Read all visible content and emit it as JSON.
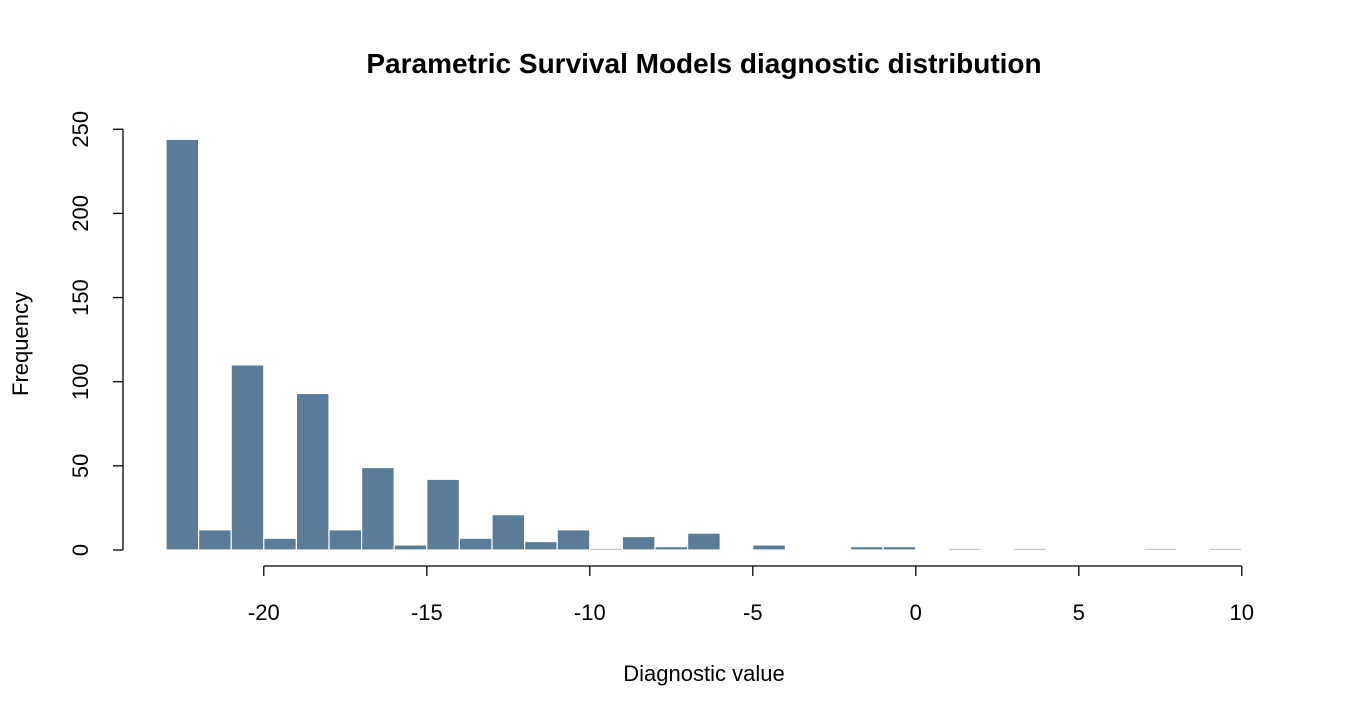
{
  "chart_data": {
    "type": "bar",
    "title": "Parametric Survival Models diagnostic distribution",
    "xlabel": "Diagnostic value",
    "ylabel": "Frequency",
    "xlim": [
      -23,
      10
    ],
    "ylim": [
      0,
      250
    ],
    "xticks": [
      -20,
      -15,
      -10,
      -5,
      0,
      5,
      10
    ],
    "yticks": [
      0,
      50,
      100,
      150,
      200,
      250
    ],
    "bin_width": 1,
    "bins": [
      {
        "x0": -23,
        "x1": -22,
        "count": 244
      },
      {
        "x0": -22,
        "x1": -21,
        "count": 12
      },
      {
        "x0": -21,
        "x1": -20,
        "count": 110
      },
      {
        "x0": -20,
        "x1": -19,
        "count": 7
      },
      {
        "x0": -19,
        "x1": -18,
        "count": 93
      },
      {
        "x0": -18,
        "x1": -17,
        "count": 12
      },
      {
        "x0": -17,
        "x1": -16,
        "count": 49
      },
      {
        "x0": -16,
        "x1": -15,
        "count": 3
      },
      {
        "x0": -15,
        "x1": -14,
        "count": 42
      },
      {
        "x0": -14,
        "x1": -13,
        "count": 7
      },
      {
        "x0": -13,
        "x1": -12,
        "count": 21
      },
      {
        "x0": -12,
        "x1": -11,
        "count": 5
      },
      {
        "x0": -11,
        "x1": -10,
        "count": 12
      },
      {
        "x0": -10,
        "x1": -9,
        "count": 1
      },
      {
        "x0": -9,
        "x1": -8,
        "count": 8
      },
      {
        "x0": -8,
        "x1": -7,
        "count": 2
      },
      {
        "x0": -7,
        "x1": -6,
        "count": 10
      },
      {
        "x0": -6,
        "x1": -5,
        "count": 0
      },
      {
        "x0": -5,
        "x1": -4,
        "count": 3
      },
      {
        "x0": -4,
        "x1": -3,
        "count": 0
      },
      {
        "x0": -3,
        "x1": -2,
        "count": 0
      },
      {
        "x0": -2,
        "x1": -1,
        "count": 2
      },
      {
        "x0": -1,
        "x1": 0,
        "count": 2
      },
      {
        "x0": 0,
        "x1": 1,
        "count": 0
      },
      {
        "x0": 1,
        "x1": 2,
        "count": 1
      },
      {
        "x0": 2,
        "x1": 3,
        "count": 0
      },
      {
        "x0": 3,
        "x1": 4,
        "count": 1
      },
      {
        "x0": 4,
        "x1": 5,
        "count": 0
      },
      {
        "x0": 5,
        "x1": 6,
        "count": 0
      },
      {
        "x0": 6,
        "x1": 7,
        "count": 0
      },
      {
        "x0": 7,
        "x1": 8,
        "count": 1
      },
      {
        "x0": 8,
        "x1": 9,
        "count": 0
      },
      {
        "x0": 9,
        "x1": 10,
        "count": 1
      }
    ],
    "bar_color": "#5b7c99",
    "grid": false,
    "legend": "none"
  }
}
